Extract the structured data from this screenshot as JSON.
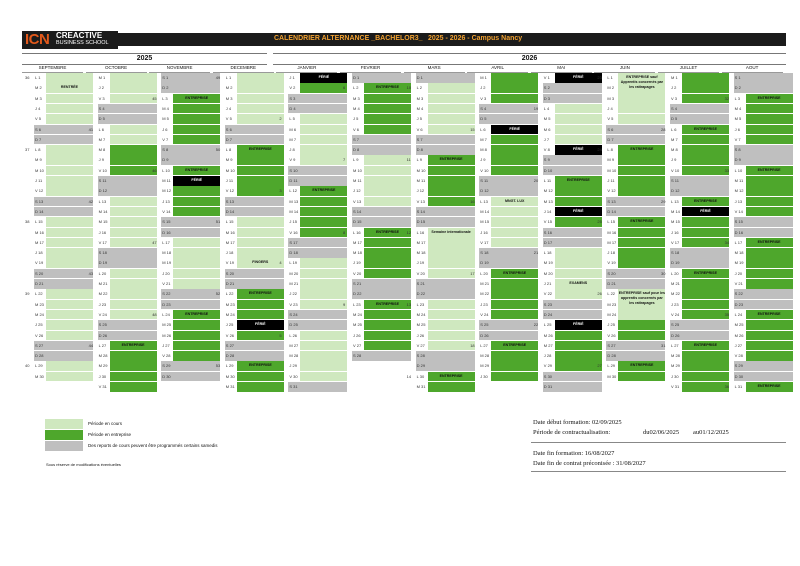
{
  "header": {
    "logo_big": "ICN",
    "logo_line1": "CREACTIVE",
    "logo_line2": "BUSINESS SCHOOL",
    "title": "CALENDRIER ALTERNANCE _BACHELOR3_",
    "subtitle": "2025 - 2026 - Campus Nancy"
  },
  "years": [
    "2025",
    "2026"
  ],
  "months": [
    "SEPTEMBRE",
    "OCTOBRE",
    "NOVEMBRE",
    "DECEMBRE",
    "JANVIER",
    "FEVRIER",
    "MARS",
    "AVRIL",
    "MAI",
    "JUIN",
    "JUILLET",
    "AOUT"
  ],
  "labels": {
    "entreprise": "ENTREPRISE",
    "ecole": "ÉCOLE",
    "ferie": "FÉRIÉ",
    "rentree": "RENTRÉE",
    "fingers": "FINGERS",
    "mngt": "MNGT. LUX",
    "examens": "EXAMENS",
    "voyage": "Semaine internationale",
    "juin_ent": "ENTREPRISE sauf Apprentis concernés par les rattrapages",
    "juin_ent2": "ENTREPRISE sauf pour les apprentis concernés par les rattrapages",
    "challenge": "CHALLENGE"
  },
  "legend": [
    {
      "text": "Période en cours",
      "color": "#cfe8bf"
    },
    {
      "text": "Période en entreprise",
      "color": "#4ea72c"
    },
    {
      "text": "Des reports de cours peuvent être programmés certains samedis",
      "color": "#bfbfbf"
    }
  ],
  "note": "Sous réserve de modifications éventuelles",
  "info": {
    "debut_formation": "Date début formation: 02/09/2025",
    "contractualisation_label": "Période de contractualisation:",
    "contractualisation_from": "du02/06/2025",
    "contractualisation_to": "au01/12/2025",
    "fin_formation": "Date fin formation: 16/08/2027",
    "fin_contrat": "Date fin de contrat préconisée : 31/08/2027"
  },
  "colors": {
    "school": "#cfe8bf",
    "company": "#4ea72c",
    "weekend": "#bfbfbf",
    "holiday": "#000000",
    "accent": "#f0a030",
    "brand": "#e2581b"
  }
}
